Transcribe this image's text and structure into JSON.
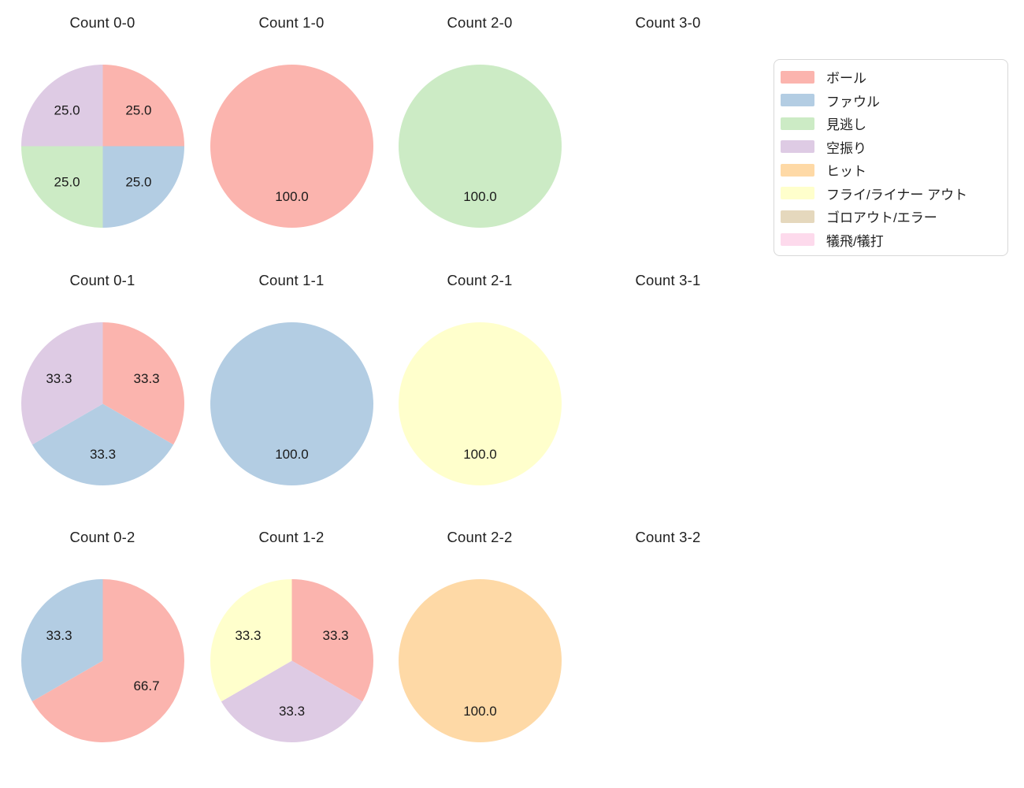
{
  "page": {
    "background": "#ffffff",
    "text_color": "#1f1f1f"
  },
  "palette": {
    "ball": "#fbb4ae",
    "foul": "#b3cde3",
    "called_strike": "#ccebc5",
    "swinging_strike": "#decbe4",
    "hit": "#fed9a6",
    "fly_liner_out": "#ffffcc",
    "groundout_error": "#e5d8bd",
    "sacrifice": "#fddaec"
  },
  "legend": {
    "position": "top-right",
    "items": [
      {
        "label": "ボール",
        "color": "#fbb4ae"
      },
      {
        "label": "ファウル",
        "color": "#b3cde3"
      },
      {
        "label": "見逃し",
        "color": "#ccebc5"
      },
      {
        "label": "空振り",
        "color": "#decbe4"
      },
      {
        "label": "ヒット",
        "color": "#fed9a6"
      },
      {
        "label": "フライ/ライナー アウト",
        "color": "#ffffcc"
      },
      {
        "label": "ゴロアウト/エラー",
        "color": "#e5d8bd"
      },
      {
        "label": "犠飛/犠打",
        "color": "#fddaec"
      }
    ]
  },
  "chart_data": [
    {
      "type": "pie",
      "title": "Count 0-0",
      "start_angle_deg_from_top": 0,
      "direction": "clockwise",
      "slices": [
        {
          "category": "ボール",
          "value": 25.0,
          "label": "25.0",
          "color": "#fbb4ae"
        },
        {
          "category": "ファウル",
          "value": 25.0,
          "label": "25.0",
          "color": "#b3cde3"
        },
        {
          "category": "見逃し",
          "value": 25.0,
          "label": "25.0",
          "color": "#ccebc5"
        },
        {
          "category": "空振り",
          "value": 25.0,
          "label": "25.0",
          "color": "#decbe4"
        }
      ]
    },
    {
      "type": "pie",
      "title": "Count 1-0",
      "start_angle_deg_from_top": 0,
      "direction": "clockwise",
      "slices": [
        {
          "category": "ボール",
          "value": 100.0,
          "label": "100.0",
          "color": "#fbb4ae"
        }
      ]
    },
    {
      "type": "pie",
      "title": "Count 2-0",
      "start_angle_deg_from_top": 0,
      "direction": "clockwise",
      "slices": [
        {
          "category": "見逃し",
          "value": 100.0,
          "label": "100.0",
          "color": "#ccebc5"
        }
      ]
    },
    {
      "type": "pie",
      "title": "Count 3-0",
      "start_angle_deg_from_top": 0,
      "direction": "clockwise",
      "slices": []
    },
    {
      "type": "pie",
      "title": "Count 0-1",
      "start_angle_deg_from_top": 0,
      "direction": "clockwise",
      "slices": [
        {
          "category": "ボール",
          "value": 33.3,
          "label": "33.3",
          "color": "#fbb4ae"
        },
        {
          "category": "ファウル",
          "value": 33.3,
          "label": "33.3",
          "color": "#b3cde3"
        },
        {
          "category": "空振り",
          "value": 33.3,
          "label": "33.3",
          "color": "#decbe4"
        }
      ]
    },
    {
      "type": "pie",
      "title": "Count 1-1",
      "start_angle_deg_from_top": 0,
      "direction": "clockwise",
      "slices": [
        {
          "category": "ファウル",
          "value": 100.0,
          "label": "100.0",
          "color": "#b3cde3"
        }
      ]
    },
    {
      "type": "pie",
      "title": "Count 2-1",
      "start_angle_deg_from_top": 0,
      "direction": "clockwise",
      "slices": [
        {
          "category": "フライ/ライナー アウト",
          "value": 100.0,
          "label": "100.0",
          "color": "#ffffcc"
        }
      ]
    },
    {
      "type": "pie",
      "title": "Count 3-1",
      "start_angle_deg_from_top": 0,
      "direction": "clockwise",
      "slices": []
    },
    {
      "type": "pie",
      "title": "Count 0-2",
      "start_angle_deg_from_top": 0,
      "direction": "clockwise",
      "slices": [
        {
          "category": "ボール",
          "value": 66.7,
          "label": "66.7",
          "color": "#fbb4ae"
        },
        {
          "category": "ファウル",
          "value": 33.3,
          "label": "33.3",
          "color": "#b3cde3"
        }
      ]
    },
    {
      "type": "pie",
      "title": "Count 1-2",
      "start_angle_deg_from_top": 0,
      "direction": "clockwise",
      "slices": [
        {
          "category": "ボール",
          "value": 33.3,
          "label": "33.3",
          "color": "#fbb4ae"
        },
        {
          "category": "空振り",
          "value": 33.3,
          "label": "33.3",
          "color": "#decbe4"
        },
        {
          "category": "フライ/ライナー アウト",
          "value": 33.3,
          "label": "33.3",
          "color": "#ffffcc"
        }
      ]
    },
    {
      "type": "pie",
      "title": "Count 2-2",
      "start_angle_deg_from_top": 0,
      "direction": "clockwise",
      "slices": [
        {
          "category": "ヒット",
          "value": 100.0,
          "label": "100.0",
          "color": "#fed9a6"
        }
      ]
    },
    {
      "type": "pie",
      "title": "Count 3-2",
      "start_angle_deg_from_top": 0,
      "direction": "clockwise",
      "slices": []
    }
  ]
}
